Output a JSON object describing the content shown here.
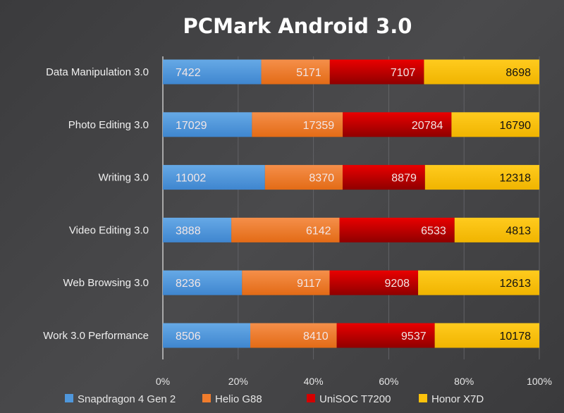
{
  "chart_data": {
    "type": "bar",
    "orientation": "horizontal",
    "stacked": "percent",
    "title": "PCMark Android 3.0",
    "xlabel": "",
    "ylabel": "",
    "xlim": [
      0,
      100
    ],
    "x_ticks": [
      "0%",
      "20%",
      "40%",
      "60%",
      "80%",
      "100%"
    ],
    "grid": true,
    "legend_position": "bottom",
    "categories": [
      "Data Manipulation 3.0",
      "Photo Editing 3.0",
      "Writing 3.0",
      "Video Editing 3.0",
      "Web Browsing 3.0",
      "Work 3.0 Performance"
    ],
    "series": [
      {
        "name": "Snapdragon 4 Gen 2",
        "color": "#4f97dc",
        "values": [
          7422,
          17029,
          11002,
          3888,
          8236,
          8506
        ]
      },
      {
        "name": "Helio G88",
        "color": "#f07c2c",
        "values": [
          5171,
          17359,
          8370,
          6142,
          9117,
          8410
        ]
      },
      {
        "name": "UniSOC T7200",
        "color": "#d40000",
        "values": [
          7107,
          20784,
          8879,
          6533,
          9208,
          9537
        ]
      },
      {
        "name": "Honor X7D",
        "color": "#fcc20c",
        "values": [
          8698,
          16790,
          12318,
          4813,
          12613,
          10178
        ]
      }
    ]
  }
}
